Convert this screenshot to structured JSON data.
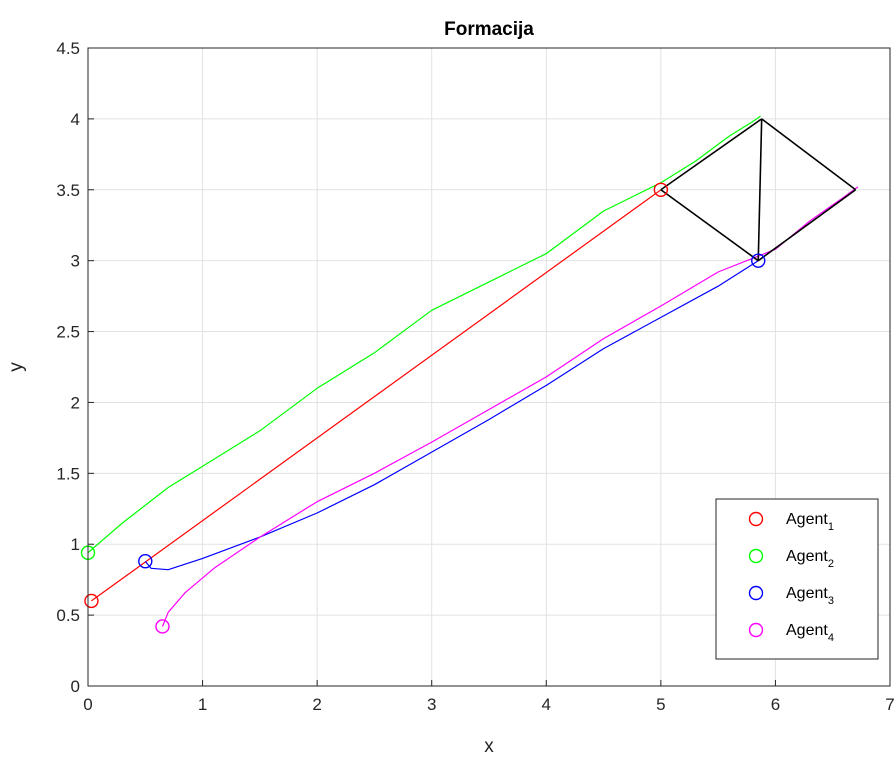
{
  "chart_data": {
    "type": "line",
    "title": "Formacija",
    "xlabel": "x",
    "ylabel": "y",
    "xlim": [
      0,
      7
    ],
    "ylim": [
      0,
      4.5
    ],
    "xticks": [
      "0",
      "1",
      "2",
      "3",
      "4",
      "5",
      "6",
      "7"
    ],
    "yticks": [
      "0",
      "0.5",
      "1",
      "1.5",
      "2",
      "2.5",
      "3",
      "3.5",
      "4",
      "4.5"
    ],
    "grid": true,
    "legend_position": "bottom-right",
    "series": [
      {
        "name": "Agent",
        "sub": "1",
        "color": "#ff0000",
        "path": [
          [
            0.03,
            0.6
          ],
          [
            5.0,
            3.5
          ]
        ]
      },
      {
        "name": "Agent",
        "sub": "2",
        "color": "#00ff00",
        "path": [
          [
            0.0,
            0.94
          ],
          [
            0.3,
            1.15
          ],
          [
            0.7,
            1.4
          ],
          [
            1.0,
            1.55
          ],
          [
            1.5,
            1.8
          ],
          [
            2.0,
            2.1
          ],
          [
            2.5,
            2.35
          ],
          [
            3.0,
            2.65
          ],
          [
            3.5,
            2.85
          ],
          [
            4.0,
            3.05
          ],
          [
            4.5,
            3.35
          ],
          [
            5.0,
            3.55
          ],
          [
            5.3,
            3.7
          ],
          [
            5.6,
            3.88
          ],
          [
            5.8,
            3.98
          ],
          [
            5.87,
            4.02
          ]
        ]
      },
      {
        "name": "Agent",
        "sub": "3",
        "color": "#0000ff",
        "path": [
          [
            0.5,
            0.88
          ],
          [
            0.55,
            0.83
          ],
          [
            0.7,
            0.82
          ],
          [
            1.0,
            0.9
          ],
          [
            1.5,
            1.05
          ],
          [
            2.0,
            1.22
          ],
          [
            2.5,
            1.42
          ],
          [
            3.0,
            1.65
          ],
          [
            3.5,
            1.88
          ],
          [
            4.0,
            2.12
          ],
          [
            4.5,
            2.38
          ],
          [
            5.0,
            2.6
          ],
          [
            5.5,
            2.82
          ],
          [
            5.85,
            3.0
          ]
        ]
      },
      {
        "name": "Agent",
        "sub": "4",
        "color": "#ff00ff",
        "path": [
          [
            0.65,
            0.42
          ],
          [
            0.7,
            0.52
          ],
          [
            0.85,
            0.66
          ],
          [
            1.1,
            0.83
          ],
          [
            1.5,
            1.05
          ],
          [
            2.0,
            1.3
          ],
          [
            2.5,
            1.5
          ],
          [
            3.0,
            1.72
          ],
          [
            3.5,
            1.95
          ],
          [
            4.0,
            2.18
          ],
          [
            4.5,
            2.45
          ],
          [
            5.0,
            2.68
          ],
          [
            5.5,
            2.92
          ],
          [
            6.0,
            3.08
          ],
          [
            6.3,
            3.28
          ],
          [
            6.6,
            3.45
          ],
          [
            6.72,
            3.52
          ]
        ]
      }
    ],
    "start_markers": [
      {
        "series": 0,
        "x": 0.03,
        "y": 0.6
      },
      {
        "series": 1,
        "x": 0.0,
        "y": 0.94
      },
      {
        "series": 2,
        "x": 0.5,
        "y": 0.88
      },
      {
        "series": 3,
        "x": 0.65,
        "y": 0.42
      },
      {
        "series": 0,
        "x": 5.0,
        "y": 3.5
      },
      {
        "series": 2,
        "x": 5.85,
        "y": 3.0
      }
    ],
    "formation": {
      "color": "#000000",
      "segments": [
        [
          [
            5.0,
            3.5
          ],
          [
            5.88,
            4.0
          ]
        ],
        [
          [
            5.88,
            4.0
          ],
          [
            6.7,
            3.5
          ]
        ],
        [
          [
            6.7,
            3.5
          ],
          [
            5.85,
            3.0
          ]
        ],
        [
          [
            5.85,
            3.0
          ],
          [
            5.0,
            3.5
          ]
        ],
        [
          [
            5.88,
            4.0
          ],
          [
            5.85,
            3.0
          ]
        ]
      ]
    }
  }
}
